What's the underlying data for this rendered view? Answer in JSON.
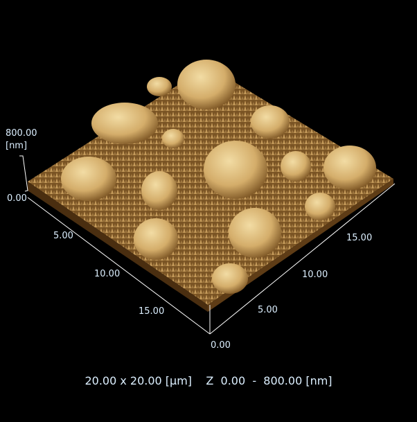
{
  "z_axis": {
    "max_label": "800.00",
    "unit_label": "[nm]",
    "min_label": "0.00"
  },
  "x_axis": {
    "ticks": [
      "0.00",
      "5.00",
      "10.00",
      "15.00"
    ]
  },
  "y_axis": {
    "ticks": [
      "5.00",
      "10.00",
      "15.00"
    ]
  },
  "footer": {
    "scan_size": "20.00 x 20.00 [µm]",
    "z_range": "Z  0.00  -  800.00 [nm]"
  },
  "colors": {
    "background": "#000000",
    "surface_dark": "#5a3a14",
    "surface_mid": "#b08040",
    "surface_light": "#f0d9a0",
    "text": "#dcefff",
    "axis": "#ffffff"
  }
}
